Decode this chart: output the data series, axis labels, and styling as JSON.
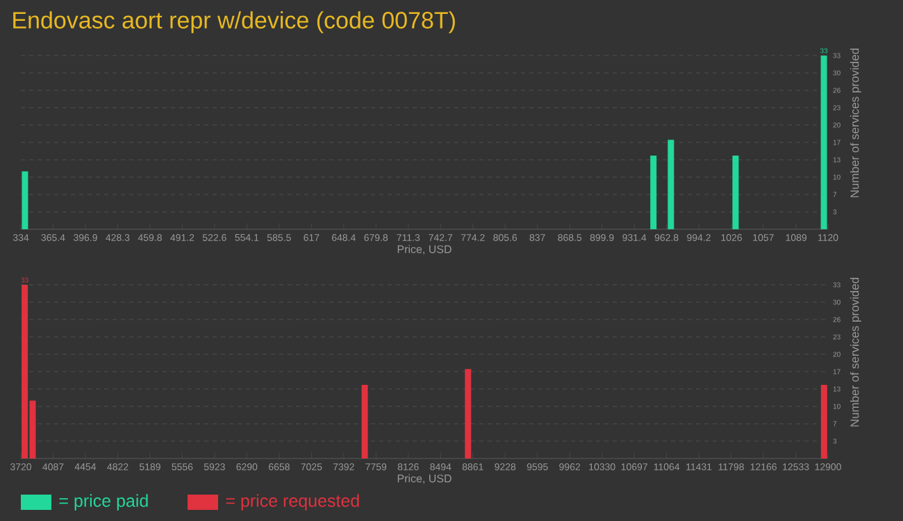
{
  "chart_data": [
    {
      "type": "bar",
      "title": "Endovasc aort repr w/device (code 0078T)",
      "xlabel": "Price, USD",
      "ylabel": "Number of services provided",
      "x": [
        338,
        950,
        967,
        1030,
        1116
      ],
      "series": [
        {
          "name": "= price paid",
          "color": "#22d89a",
          "values": [
            11,
            14,
            17,
            14,
            33
          ],
          "value_labels": [
            null,
            null,
            null,
            null,
            "33"
          ]
        }
      ],
      "xlim": [
        334,
        1120
      ],
      "xticks": [
        334,
        365.4,
        396.9,
        428.3,
        459.8,
        491.2,
        522.6,
        554.1,
        585.5,
        617,
        648.4,
        679.8,
        711.3,
        742.7,
        774.2,
        805.6,
        837,
        868.5,
        899.9,
        931.4,
        962.8,
        994.2,
        1026,
        1057,
        1089,
        1120
      ],
      "ylim": [
        0,
        33
      ],
      "yticks": [
        {
          "value": 3.3,
          "label": "3"
        },
        {
          "value": 6.6,
          "label": "7"
        },
        {
          "value": 9.9,
          "label": "10"
        },
        {
          "value": 13.2,
          "label": "13"
        },
        {
          "value": 16.5,
          "label": "17"
        },
        {
          "value": 19.8,
          "label": "20"
        },
        {
          "value": 23.1,
          "label": "23"
        },
        {
          "value": 26.4,
          "label": "26"
        },
        {
          "value": 29.7,
          "label": "30"
        },
        {
          "value": 33,
          "label": "33"
        }
      ],
      "grid": "y",
      "legend": "bottom left"
    },
    {
      "type": "bar",
      "xlabel": "Price, USD",
      "ylabel": "Number of services provided",
      "x": [
        3764,
        3854,
        7631,
        8806,
        12855
      ],
      "series": [
        {
          "name": "= price requested",
          "color": "#e0323f",
          "values": [
            33,
            11,
            14,
            17,
            14
          ],
          "value_labels": [
            "33",
            null,
            null,
            null,
            null
          ]
        }
      ],
      "xlim": [
        3720,
        12900
      ],
      "xticks": [
        3720,
        4087,
        4454,
        4822,
        5189,
        5556,
        5923,
        6290,
        6658,
        7025,
        7392,
        7759,
        8126,
        8494,
        8861,
        9228,
        9595,
        9962,
        10330,
        10697,
        11064,
        11431,
        11798,
        12166,
        12533,
        12900
      ],
      "ylim": [
        0,
        33
      ],
      "yticks": [
        {
          "value": 3.3,
          "label": "3"
        },
        {
          "value": 6.6,
          "label": "7"
        },
        {
          "value": 9.9,
          "label": "10"
        },
        {
          "value": 13.2,
          "label": "13"
        },
        {
          "value": 16.5,
          "label": "17"
        },
        {
          "value": 19.8,
          "label": "20"
        },
        {
          "value": 23.1,
          "label": "23"
        },
        {
          "value": 26.4,
          "label": "26"
        },
        {
          "value": 29.7,
          "label": "30"
        },
        {
          "value": 33,
          "label": "33"
        }
      ],
      "grid": "y",
      "legend": "bottom left"
    }
  ]
}
